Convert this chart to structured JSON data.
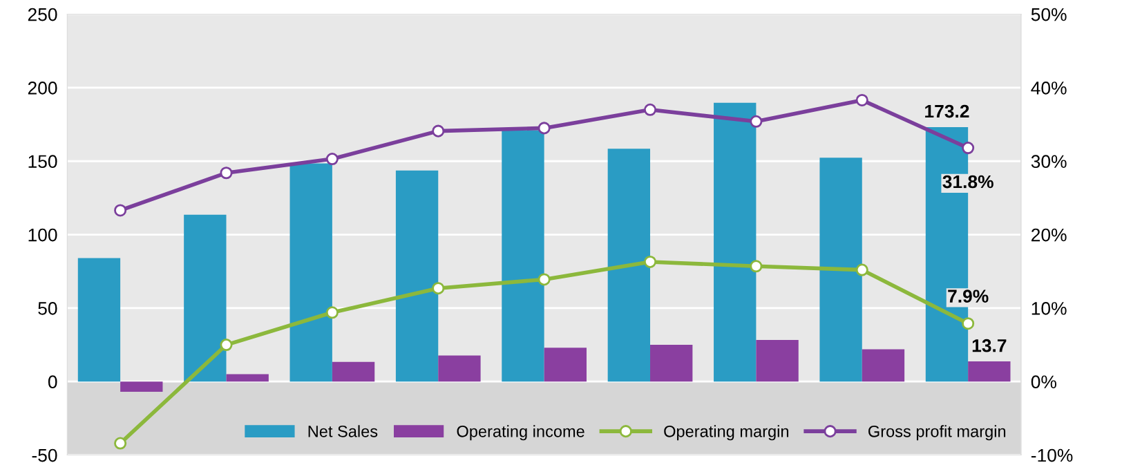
{
  "chart_data": {
    "type": "bar",
    "categories": [
      null,
      null,
      null,
      null,
      null,
      null,
      null,
      null,
      null
    ],
    "series": [
      {
        "name": "Net Sales",
        "color": "#2a9cc4",
        "values": [
          84,
          113.5,
          148.5,
          143.7,
          171,
          158.5,
          189.7,
          152.3,
          173.2
        ],
        "value_labels": [
          null,
          null,
          null,
          null,
          null,
          null,
          null,
          null,
          "173.2"
        ]
      },
      {
        "name": "Operating income",
        "color": "#8a3fa0",
        "values": [
          -7,
          5,
          13.4,
          17.7,
          23,
          25,
          28.3,
          22,
          13.7
        ],
        "value_labels": [
          null,
          null,
          null,
          null,
          null,
          null,
          null,
          null,
          "13.7"
        ]
      },
      {
        "name": "Operating margin",
        "type": "line",
        "axis": "y2",
        "color": "#8cb83c",
        "values": [
          -8.4,
          5.0,
          9.4,
          12.7,
          13.9,
          16.3,
          15.7,
          15.2,
          7.9
        ],
        "value_labels": [
          null,
          null,
          null,
          null,
          null,
          null,
          null,
          null,
          "7.9%"
        ]
      },
      {
        "name": "Gross profit margin",
        "type": "line",
        "axis": "y2",
        "color": "#7b3f9c",
        "values": [
          23.3,
          28.4,
          30.3,
          34.1,
          34.5,
          37.0,
          35.4,
          38.3,
          31.8
        ],
        "value_labels": [
          null,
          null,
          null,
          null,
          null,
          null,
          null,
          null,
          "31.8%"
        ]
      }
    ],
    "ylim": [
      -50,
      250
    ],
    "yticks": [
      -50,
      0,
      50,
      100,
      150,
      200,
      250
    ],
    "y2lim": [
      -10,
      50
    ],
    "y2ticks": [
      {
        "value": -10,
        "label": "-10%"
      },
      {
        "value": 0,
        "label": "0%"
      },
      {
        "value": 10,
        "label": "10%"
      },
      {
        "value": 20,
        "label": "20%"
      },
      {
        "value": 30,
        "label": "30%"
      },
      {
        "value": 40,
        "label": "40%"
      },
      {
        "value": 50,
        "label": "50%"
      }
    ],
    "bands": [
      {
        "axis": "y",
        "from": -50,
        "to": 0,
        "color": "#d6d6d6"
      }
    ],
    "grid": "y",
    "legend": "bottom right",
    "marker": "circle",
    "line_style": "solid"
  }
}
